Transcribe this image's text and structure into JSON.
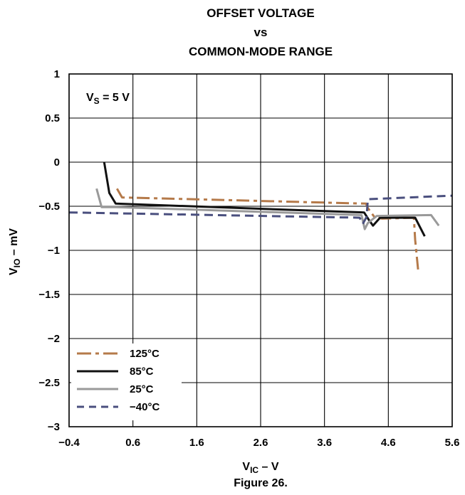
{
  "chart_data": {
    "type": "line",
    "title_lines": [
      "OFFSET VOLTAGE",
      "vs",
      "COMMON-MODE RANGE"
    ],
    "xlabel": {
      "main": "V",
      "sub": "IC",
      "suffix": " – V"
    },
    "ylabel": {
      "main": "V",
      "sub": "IO",
      "suffix": " – mV"
    },
    "xlim": [
      -0.4,
      5.6
    ],
    "ylim": [
      -3,
      1
    ],
    "x_ticks": [
      -0.4,
      0.6,
      1.6,
      2.6,
      3.6,
      4.6,
      5.6
    ],
    "x_tick_labels": [
      "−0.4",
      "0.6",
      "1.6",
      "2.6",
      "3.6",
      "4.6",
      "5.6"
    ],
    "y_ticks": [
      1,
      0.5,
      0,
      -0.5,
      -1,
      -1.5,
      -2,
      -2.5,
      -3
    ],
    "y_tick_labels": [
      "1",
      "0.5",
      "0",
      "−0.5",
      "−1",
      "−1.5",
      "−2",
      "−2.5",
      "−3"
    ],
    "grid": true,
    "legend_placement": "bottom-left",
    "annotation": {
      "main": "V",
      "sub": "S",
      "suffix": " = 5 V"
    },
    "caption": "Figure 26.",
    "series": [
      {
        "name": "125°C",
        "color": "#b57a4a",
        "dash": "dashdot",
        "x": [
          0.35,
          0.43,
          4.25,
          4.28,
          4.38,
          4.5,
          5.0,
          5.02,
          5.07
        ],
        "y": [
          -0.3,
          -0.4,
          -0.47,
          -0.52,
          -0.62,
          -0.64,
          -0.63,
          -0.88,
          -1.25
        ]
      },
      {
        "name": "85°C",
        "color": "#111111",
        "dash": "solid",
        "x": [
          0.15,
          0.23,
          0.33,
          4.22,
          4.3,
          4.36,
          4.47,
          5.02,
          5.17
        ],
        "y": [
          0.0,
          -0.35,
          -0.47,
          -0.57,
          -0.66,
          -0.72,
          -0.63,
          -0.63,
          -0.84
        ]
      },
      {
        "name": "25°C",
        "color": "#9a9a9a",
        "dash": "solid",
        "x": [
          0.03,
          0.11,
          0.33,
          4.18,
          4.23,
          4.28,
          4.42,
          5.27,
          5.39
        ],
        "y": [
          -0.3,
          -0.51,
          -0.51,
          -0.6,
          -0.76,
          -0.69,
          -0.61,
          -0.6,
          -0.72
        ]
      },
      {
        "name": "−40°C",
        "color": "#4a4f7e",
        "dash": "dashed",
        "x": [
          -0.4,
          4.15,
          4.2,
          4.26,
          4.28,
          5.6
        ],
        "y": [
          -0.57,
          -0.63,
          -0.7,
          -0.62,
          -0.42,
          -0.38
        ]
      }
    ]
  }
}
